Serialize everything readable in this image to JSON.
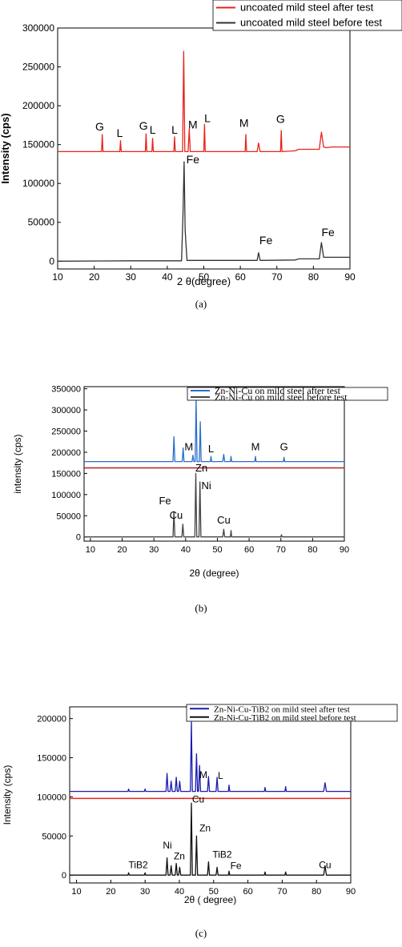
{
  "chart_data": [
    {
      "type": "line",
      "xlabel": "2 θ(degree)",
      "ylabel": "Intensity (cps)",
      "caption": "(a)",
      "xlim": [
        10,
        90
      ],
      "ylim": [
        -10000,
        300000
      ],
      "xticks": [
        10,
        20,
        30,
        40,
        50,
        60,
        70,
        80,
        90
      ],
      "yticks": [
        0,
        50000,
        100000,
        150000,
        200000,
        250000,
        300000
      ],
      "legend_position": "top-right",
      "series": [
        {
          "name": "uncoated mild steel after test",
          "color": "#e8231c",
          "x": [
            10,
            22,
            22.2,
            22.4,
            27,
            27.2,
            27.4,
            34,
            34.2,
            34.4,
            35.8,
            36,
            36.2,
            41.8,
            42,
            42.2,
            44.2,
            44.5,
            44.8,
            45.2,
            45.7,
            46,
            46.3,
            50,
            50.2,
            50.4,
            61.3,
            61.5,
            61.7,
            64.6,
            65,
            65.4,
            71,
            71.2,
            71.4,
            75,
            76,
            81.6,
            82.2,
            82.8,
            83.5,
            85,
            90
          ],
          "y": [
            141000,
            141000,
            163000,
            141000,
            141000,
            155000,
            141000,
            141000,
            164000,
            141000,
            141000,
            158000,
            141000,
            141000,
            160000,
            141000,
            141000,
            270000,
            141000,
            141000,
            141000,
            170000,
            141000,
            141000,
            176000,
            141000,
            141000,
            163000,
            141000,
            141000,
            152000,
            141000,
            141000,
            168000,
            141000,
            142000,
            144000,
            144000,
            166000,
            147000,
            146000,
            147000,
            147000
          ]
        },
        {
          "name": "uncoated mild steel before test",
          "color": "#333333",
          "x": [
            10,
            30,
            43.9,
            44.3,
            44.6,
            44.9,
            45.4,
            64.6,
            65,
            65.4,
            75,
            76,
            81.6,
            82.2,
            82.8,
            83.5,
            85,
            90
          ],
          "y": [
            0,
            500,
            500,
            60000,
            128000,
            40000,
            1000,
            1000,
            11000,
            1000,
            1500,
            3000,
            3000,
            24000,
            5000,
            5000,
            5000,
            5000
          ]
        }
      ],
      "annotations": [
        {
          "text": "G",
          "x": 21.5,
          "y": 168000
        },
        {
          "text": "L",
          "x": 27,
          "y": 160000
        },
        {
          "text": "G",
          "x": 33.5,
          "y": 169000
        },
        {
          "text": "L",
          "x": 36,
          "y": 164000
        },
        {
          "text": "L",
          "x": 42,
          "y": 164000
        },
        {
          "text": "M",
          "x": 47,
          "y": 171000
        },
        {
          "text": "L",
          "x": 51,
          "y": 179000
        },
        {
          "text": "M",
          "x": 61,
          "y": 173000
        },
        {
          "text": "G",
          "x": 71,
          "y": 178000
        },
        {
          "text": "Fe",
          "x": 47,
          "y": 126000
        },
        {
          "text": "Fe",
          "x": 67,
          "y": 22000
        },
        {
          "text": "Fe",
          "x": 84,
          "y": 32000
        }
      ]
    },
    {
      "type": "line",
      "xlabel": "2θ (degree)",
      "ylabel": "intensity (cps)",
      "caption": "(b)",
      "xlim": [
        8,
        90
      ],
      "ylim": [
        -10000,
        355000
      ],
      "xticks": [
        10,
        20,
        30,
        40,
        50,
        60,
        70,
        80,
        90
      ],
      "yticks": [
        0,
        50000,
        100000,
        150000,
        200000,
        250000,
        300000,
        350000
      ],
      "legend_position": "top-right",
      "series": [
        {
          "name": "Zn-Ni-Cu on mild steel after test",
          "color": "#2a6fc9",
          "x": [
            8,
            36,
            36.3,
            36.6,
            38.9,
            39.2,
            39.5,
            42,
            42.3,
            42.6,
            43,
            43.3,
            43.6,
            44.3,
            44.6,
            44.9,
            47.8,
            48,
            48.2,
            51.7,
            52,
            52.3,
            54.1,
            54.3,
            54.5,
            61.8,
            62,
            62.2,
            70.8,
            71,
            71.2,
            90
          ],
          "y": [
            178000,
            178000,
            237000,
            178000,
            178000,
            210000,
            178000,
            178000,
            193000,
            178000,
            178000,
            325000,
            178000,
            178000,
            272000,
            178000,
            178000,
            190000,
            178000,
            178000,
            195000,
            178000,
            178000,
            190000,
            178000,
            178000,
            190000,
            178000,
            178000,
            188000,
            178000,
            178000
          ]
        },
        {
          "name": "Zn-Ni-Cu on mild steel before test",
          "color": "#444444",
          "x": [
            8,
            36,
            36.3,
            36.6,
            38.8,
            39.1,
            39.4,
            42.9,
            43.2,
            43.5,
            44.2,
            44.5,
            44.8,
            51.7,
            52,
            52.3,
            54.1,
            54.3,
            54.5,
            70,
            70.2,
            70.4,
            90
          ],
          "y": [
            0,
            0,
            60000,
            0,
            0,
            30000,
            0,
            0,
            150000,
            0,
            0,
            130000,
            0,
            0,
            18000,
            0,
            0,
            15000,
            0,
            0,
            5000,
            0,
            0
          ]
        }
      ],
      "divider": {
        "color": "#b22222",
        "y": 163000
      },
      "annotations": [
        {
          "text": "M",
          "x": 41,
          "y": 205000
        },
        {
          "text": "L",
          "x": 48,
          "y": 200000
        },
        {
          "text": "M",
          "x": 62,
          "y": 205000
        },
        {
          "text": "G",
          "x": 71,
          "y": 205000
        },
        {
          "text": "Zn",
          "x": 45,
          "y": 155000
        },
        {
          "text": "Ni",
          "x": 46.5,
          "y": 113000
        },
        {
          "text": "Fe",
          "x": 33.5,
          "y": 77000
        },
        {
          "text": "Cu",
          "x": 37,
          "y": 43000
        },
        {
          "text": "Cu",
          "x": 52,
          "y": 32000
        }
      ]
    },
    {
      "type": "line",
      "xlabel": "2θ ( degree)",
      "ylabel": "Intensity (cps)",
      "caption": "(c)",
      "xlim": [
        8,
        90
      ],
      "ylim": [
        -10000,
        215000
      ],
      "xticks": [
        10,
        20,
        30,
        40,
        50,
        60,
        70,
        80,
        90
      ],
      "yticks": [
        0,
        50000,
        100000,
        150000,
        200000
      ],
      "legend_position": "top-right",
      "series": [
        {
          "name": "Zn-Ni-Cu-TiB2 on mild steel after test",
          "color": "#1b1bb0",
          "x": [
            8,
            25,
            25.2,
            25.4,
            29.8,
            30,
            30.2,
            36.1,
            36.4,
            36.7,
            37.3,
            37.6,
            37.9,
            38.8,
            39.1,
            39.4,
            39.8,
            40.1,
            40.4,
            43.2,
            43.5,
            43.8,
            44.7,
            45,
            45.3,
            45.6,
            45.9,
            46.2,
            48.2,
            48.5,
            48.8,
            50.7,
            51,
            51.3,
            54.3,
            54.5,
            54.7,
            64.8,
            65,
            65.2,
            70.8,
            71,
            71.2,
            82.1,
            82.5,
            82.9,
            90
          ],
          "y": [
            107000,
            107000,
            110000,
            107000,
            107000,
            110000,
            107000,
            107000,
            130000,
            107000,
            107000,
            120000,
            107000,
            107000,
            125000,
            107000,
            107000,
            120000,
            107000,
            107000,
            196000,
            107000,
            107000,
            155000,
            107000,
            107000,
            140000,
            107000,
            107000,
            126000,
            107000,
            107000,
            125000,
            107000,
            107000,
            115000,
            107000,
            107000,
            112000,
            107000,
            107000,
            113000,
            107000,
            107000,
            118000,
            107000,
            107000
          ]
        },
        {
          "name": "Zn-Ni-Cu-TiB2 on mild steel before test",
          "color": "#111111",
          "x": [
            8,
            25,
            25.2,
            25.4,
            29.8,
            30,
            30.2,
            36.1,
            36.4,
            36.7,
            37.3,
            37.6,
            37.9,
            38.8,
            39.1,
            39.4,
            39.8,
            40.1,
            40.4,
            43.2,
            43.5,
            43.8,
            44.7,
            45,
            45.3,
            48.2,
            48.5,
            48.8,
            50.7,
            51,
            51.3,
            54.3,
            54.5,
            54.7,
            64.8,
            65,
            65.2,
            70.8,
            71,
            71.2,
            82.1,
            82.5,
            82.9,
            90
          ],
          "y": [
            0,
            0,
            3000,
            0,
            0,
            3000,
            0,
            0,
            22000,
            0,
            0,
            12000,
            0,
            0,
            15000,
            0,
            0,
            10000,
            0,
            0,
            92000,
            0,
            0,
            50000,
            0,
            0,
            17000,
            0,
            0,
            10000,
            0,
            0,
            5000,
            0,
            0,
            4000,
            0,
            0,
            4000,
            0,
            0,
            12000,
            0,
            0
          ]
        }
      ],
      "divider": {
        "color": "#e8231c",
        "y": 98000
      },
      "annotations": [
        {
          "text": "M",
          "x": 47,
          "y": 124000
        },
        {
          "text": "L",
          "x": 52,
          "y": 123000
        },
        {
          "text": "Cu",
          "x": 45.5,
          "y": 93000
        },
        {
          "text": "Zn",
          "x": 47.5,
          "y": 56000
        },
        {
          "text": "Ni",
          "x": 36.5,
          "y": 34000
        },
        {
          "text": "Zn",
          "x": 40,
          "y": 20000
        },
        {
          "text": "TiB2",
          "x": 28,
          "y": 9000
        },
        {
          "text": "TiB2",
          "x": 52.5,
          "y": 22000
        },
        {
          "text": "Fe",
          "x": 56.5,
          "y": 8000
        },
        {
          "text": "Cu",
          "x": 82.5,
          "y": 9000
        }
      ]
    }
  ]
}
